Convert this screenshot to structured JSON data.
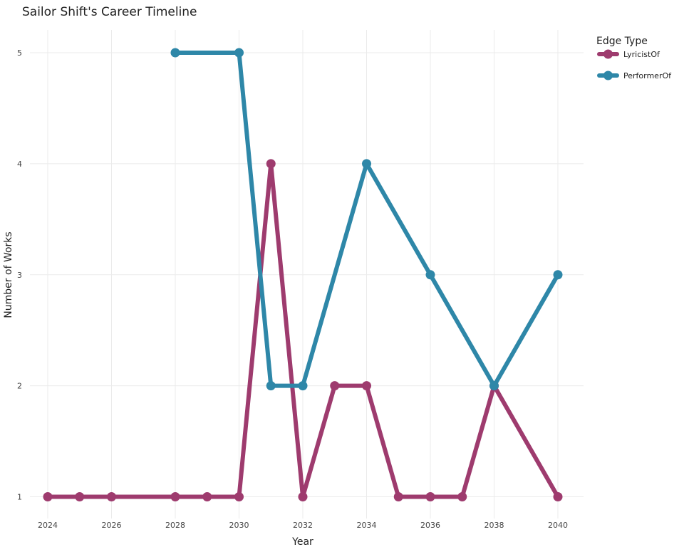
{
  "chart_data": {
    "type": "line",
    "title": "Sailor Shift's Career Timeline",
    "xlabel": "Year",
    "ylabel": "Number of Works",
    "xlim": [
      2023.6,
      2040.8
    ],
    "ylim": [
      0.75,
      5.2
    ],
    "x_ticks": [
      2024,
      2026,
      2028,
      2030,
      2032,
      2034,
      2036,
      2038,
      2040
    ],
    "y_ticks": [
      1,
      2,
      3,
      4,
      5
    ],
    "grid": true,
    "legend": {
      "title": "Edge Type",
      "placement": "right"
    },
    "series": [
      {
        "name": "LyricistOf",
        "color": "#9e3b6e",
        "x": [
          2024,
          2025,
          2026,
          2028,
          2029,
          2030,
          2031,
          2032,
          2033,
          2034,
          2035,
          2036,
          2037,
          2038,
          2040
        ],
        "values": [
          1,
          1,
          1,
          1,
          1,
          1,
          4,
          1,
          2,
          2,
          1,
          1,
          1,
          2,
          1
        ]
      },
      {
        "name": "PerformerOf",
        "color": "#2e87a8",
        "x": [
          2028,
          2030,
          2031,
          2032,
          2034,
          2036,
          2038,
          2040
        ],
        "values": [
          5,
          5,
          2,
          2,
          4,
          3,
          2,
          3
        ]
      }
    ]
  }
}
